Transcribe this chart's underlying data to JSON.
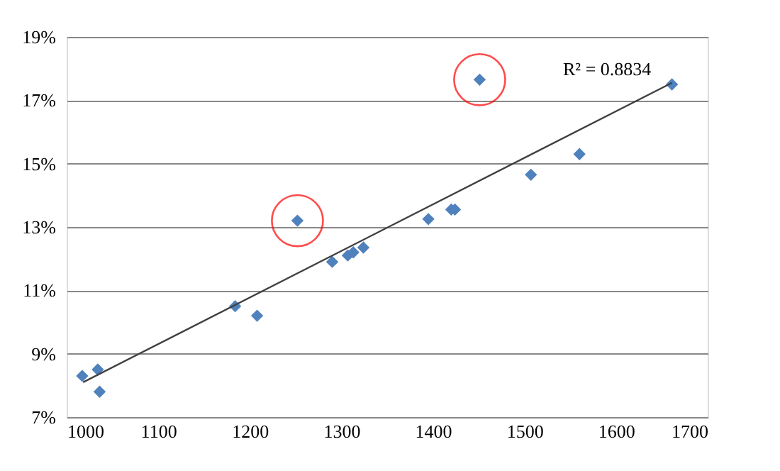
{
  "chart_data": {
    "type": "scatter",
    "annotations": [
      "R² = 0.8834"
    ],
    "series": [
      {
        "color": "#4f81bd",
        "marker": "diamond",
        "x": [
          1017,
          1034,
          1036,
          1184,
          1208,
          1252,
          1290,
          1307,
          1313,
          1324,
          1395,
          1420,
          1424,
          1451,
          1507,
          1560,
          1661
        ],
        "values": [
          8.3,
          8.5,
          7.8,
          10.5,
          10.2,
          13.2,
          11.9,
          12.1,
          12.2,
          12.35,
          13.25,
          13.55,
          13.55,
          17.65,
          14.65,
          15.3,
          17.5
        ]
      },
      {
        "type": "line",
        "color": "#404040",
        "marker": "none",
        "x": [
          1018,
          1661
        ],
        "values": [
          8.1,
          17.55
        ]
      },
      {
        "color": "#ff0000",
        "marker": "circle",
        "x": [
          1252,
          1451
        ],
        "values": [
          13.2,
          17.65
        ]
      }
    ],
    "xlim": [
      1000,
      1700
    ],
    "xticks": [
      1000,
      1100,
      1200,
      1300,
      1400,
      1500,
      1600,
      1700
    ],
    "ylim": [
      7,
      19
    ],
    "yticks": [
      {
        "value": 7,
        "label": "7%"
      },
      {
        "value": 9,
        "label": "9%"
      },
      {
        "value": 11,
        "label": "11%"
      },
      {
        "value": 13,
        "label": "13%"
      },
      {
        "value": 15,
        "label": "15%"
      },
      {
        "value": 17,
        "label": "17%"
      },
      {
        "value": 19,
        "label": "19%"
      }
    ],
    "grid": "y"
  }
}
